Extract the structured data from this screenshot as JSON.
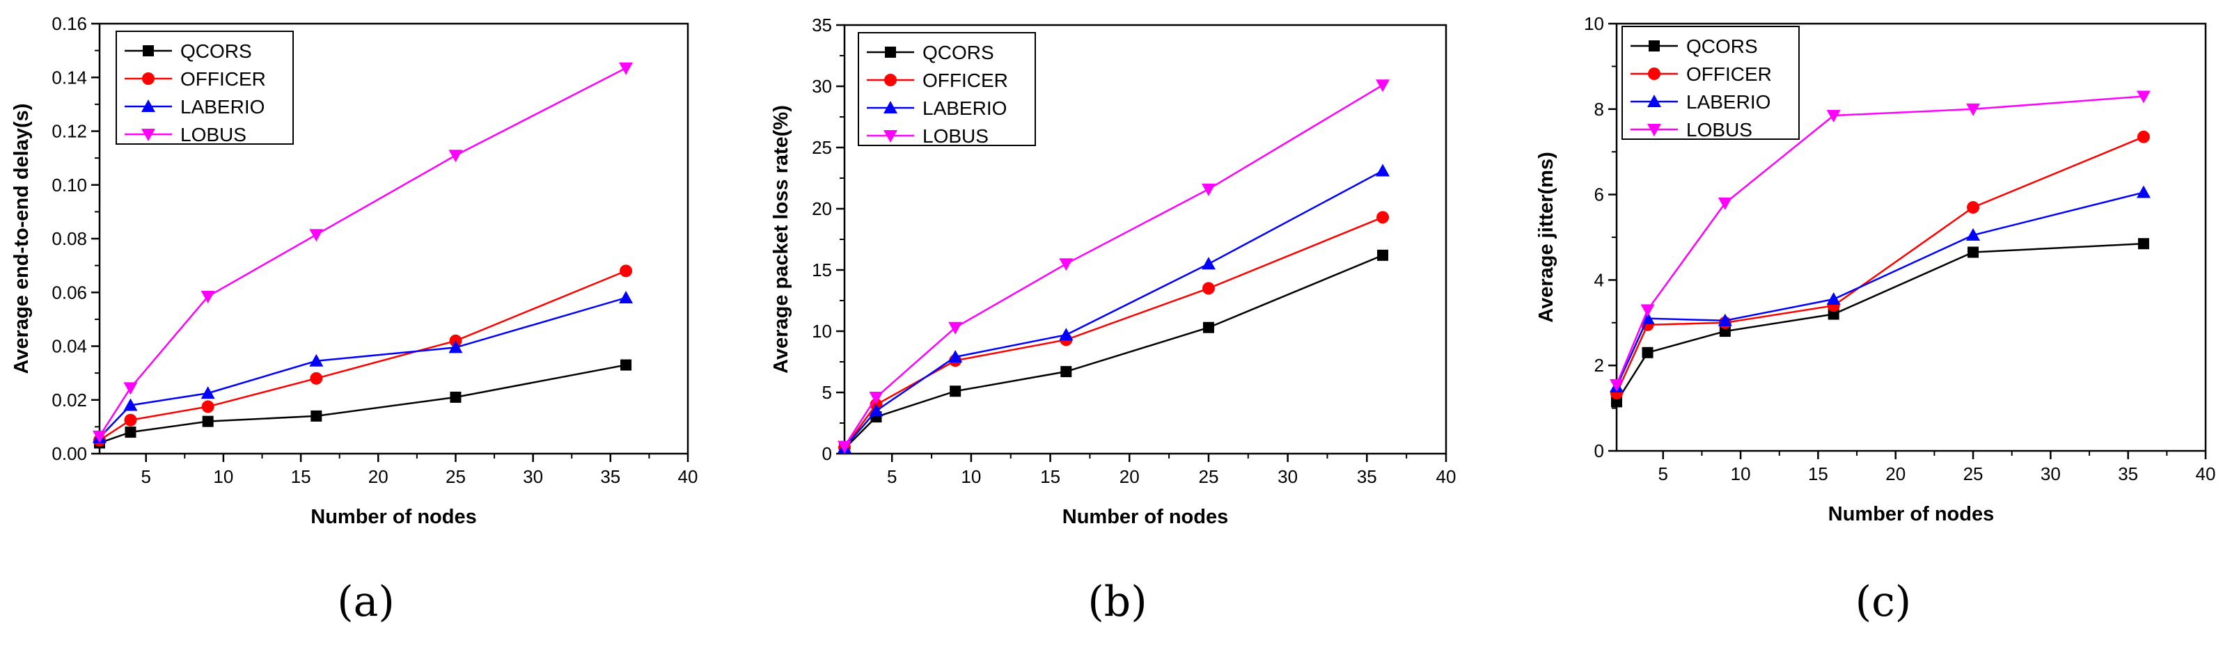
{
  "colors": {
    "QCORS": "#000000",
    "OFFICER": "#ff0000",
    "LABERIO": "#0000ff",
    "LOBUS": "#ff00ff"
  },
  "chart_data": [
    {
      "type": "line",
      "panel_label": "(a)",
      "xlabel": "Number of nodes",
      "ylabel": "Average end-to-end delay(s)",
      "xlim": [
        2,
        40
      ],
      "ylim": [
        0,
        0.16
      ],
      "xticks": [
        5,
        10,
        15,
        20,
        25,
        30,
        35,
        40
      ],
      "xtick_labels": [
        "5",
        "10",
        "15",
        "20",
        "25",
        "30",
        "35",
        "40"
      ],
      "yticks": [
        0,
        0.02,
        0.04,
        0.06,
        0.08,
        0.1,
        0.12,
        0.14,
        0.16
      ],
      "ytick_labels": [
        "0.00",
        "0.02",
        "0.04",
        "0.06",
        "0.08",
        "0.10",
        "0.12",
        "0.14",
        "0.16"
      ],
      "legend_position": "top-left",
      "x": [
        2,
        4,
        9,
        16,
        25,
        36
      ],
      "series": [
        {
          "name": "QCORS",
          "marker": "square",
          "values": [
            0.004,
            0.008,
            0.012,
            0.014,
            0.021,
            0.033
          ]
        },
        {
          "name": "OFFICER",
          "marker": "circle",
          "values": [
            0.005,
            0.0125,
            0.0175,
            0.028,
            0.042,
            0.068
          ]
        },
        {
          "name": "LABERIO",
          "marker": "triangle-up",
          "values": [
            0.006,
            0.018,
            0.0225,
            0.0345,
            0.0395,
            0.058
          ]
        },
        {
          "name": "LOBUS",
          "marker": "triangle-down",
          "values": [
            0.0065,
            0.0245,
            0.0585,
            0.0815,
            0.111,
            0.1435
          ]
        }
      ]
    },
    {
      "type": "line",
      "panel_label": "(b)",
      "xlabel": "Number of nodes",
      "ylabel": "Average packet loss rate(%)",
      "xlim": [
        2,
        40
      ],
      "ylim": [
        0,
        35
      ],
      "xticks": [
        5,
        10,
        15,
        20,
        25,
        30,
        35,
        40
      ],
      "xtick_labels": [
        "5",
        "10",
        "15",
        "20",
        "25",
        "30",
        "35",
        "40"
      ],
      "yticks": [
        0,
        5,
        10,
        15,
        20,
        25,
        30,
        35
      ],
      "ytick_labels": [
        "0",
        "5",
        "10",
        "15",
        "20",
        "25",
        "30",
        "35"
      ],
      "legend_position": "top-left",
      "x": [
        2,
        4,
        9,
        16,
        25,
        36
      ],
      "series": [
        {
          "name": "QCORS",
          "marker": "square",
          "values": [
            0.4,
            3.0,
            5.1,
            6.7,
            10.3,
            16.2
          ]
        },
        {
          "name": "OFFICER",
          "marker": "circle",
          "values": [
            0.5,
            4.0,
            7.6,
            9.3,
            13.5,
            19.3
          ]
        },
        {
          "name": "LABERIO",
          "marker": "triangle-up",
          "values": [
            0.5,
            3.5,
            7.9,
            9.7,
            15.5,
            23.1
          ]
        },
        {
          "name": "LOBUS",
          "marker": "triangle-down",
          "values": [
            0.6,
            4.6,
            10.3,
            15.5,
            21.6,
            30.1
          ]
        }
      ]
    },
    {
      "type": "line",
      "panel_label": "(c)",
      "xlabel": "Number of nodes",
      "ylabel": "Average jitter(ms)",
      "xlim": [
        2,
        40
      ],
      "ylim": [
        0,
        10
      ],
      "xticks": [
        5,
        10,
        15,
        20,
        25,
        30,
        35,
        40
      ],
      "xtick_labels": [
        "5",
        "10",
        "15",
        "20",
        "25",
        "30",
        "35",
        "40"
      ],
      "yticks": [
        0,
        2,
        4,
        6,
        8,
        10
      ],
      "ytick_labels": [
        "0",
        "2",
        "4",
        "6",
        "8",
        "10"
      ],
      "legend_position": "top-left",
      "x": [
        2,
        4,
        9,
        16,
        25,
        36
      ],
      "series": [
        {
          "name": "QCORS",
          "marker": "square",
          "values": [
            1.15,
            2.3,
            2.8,
            3.2,
            4.65,
            4.85
          ]
        },
        {
          "name": "OFFICER",
          "marker": "circle",
          "values": [
            1.35,
            2.95,
            3.0,
            3.4,
            5.7,
            7.35
          ]
        },
        {
          "name": "LABERIO",
          "marker": "triangle-up",
          "values": [
            1.5,
            3.1,
            3.05,
            3.55,
            5.05,
            6.05
          ]
        },
        {
          "name": "LOBUS",
          "marker": "triangle-down",
          "values": [
            1.55,
            3.3,
            5.8,
            7.85,
            8.0,
            8.3
          ]
        }
      ]
    }
  ]
}
